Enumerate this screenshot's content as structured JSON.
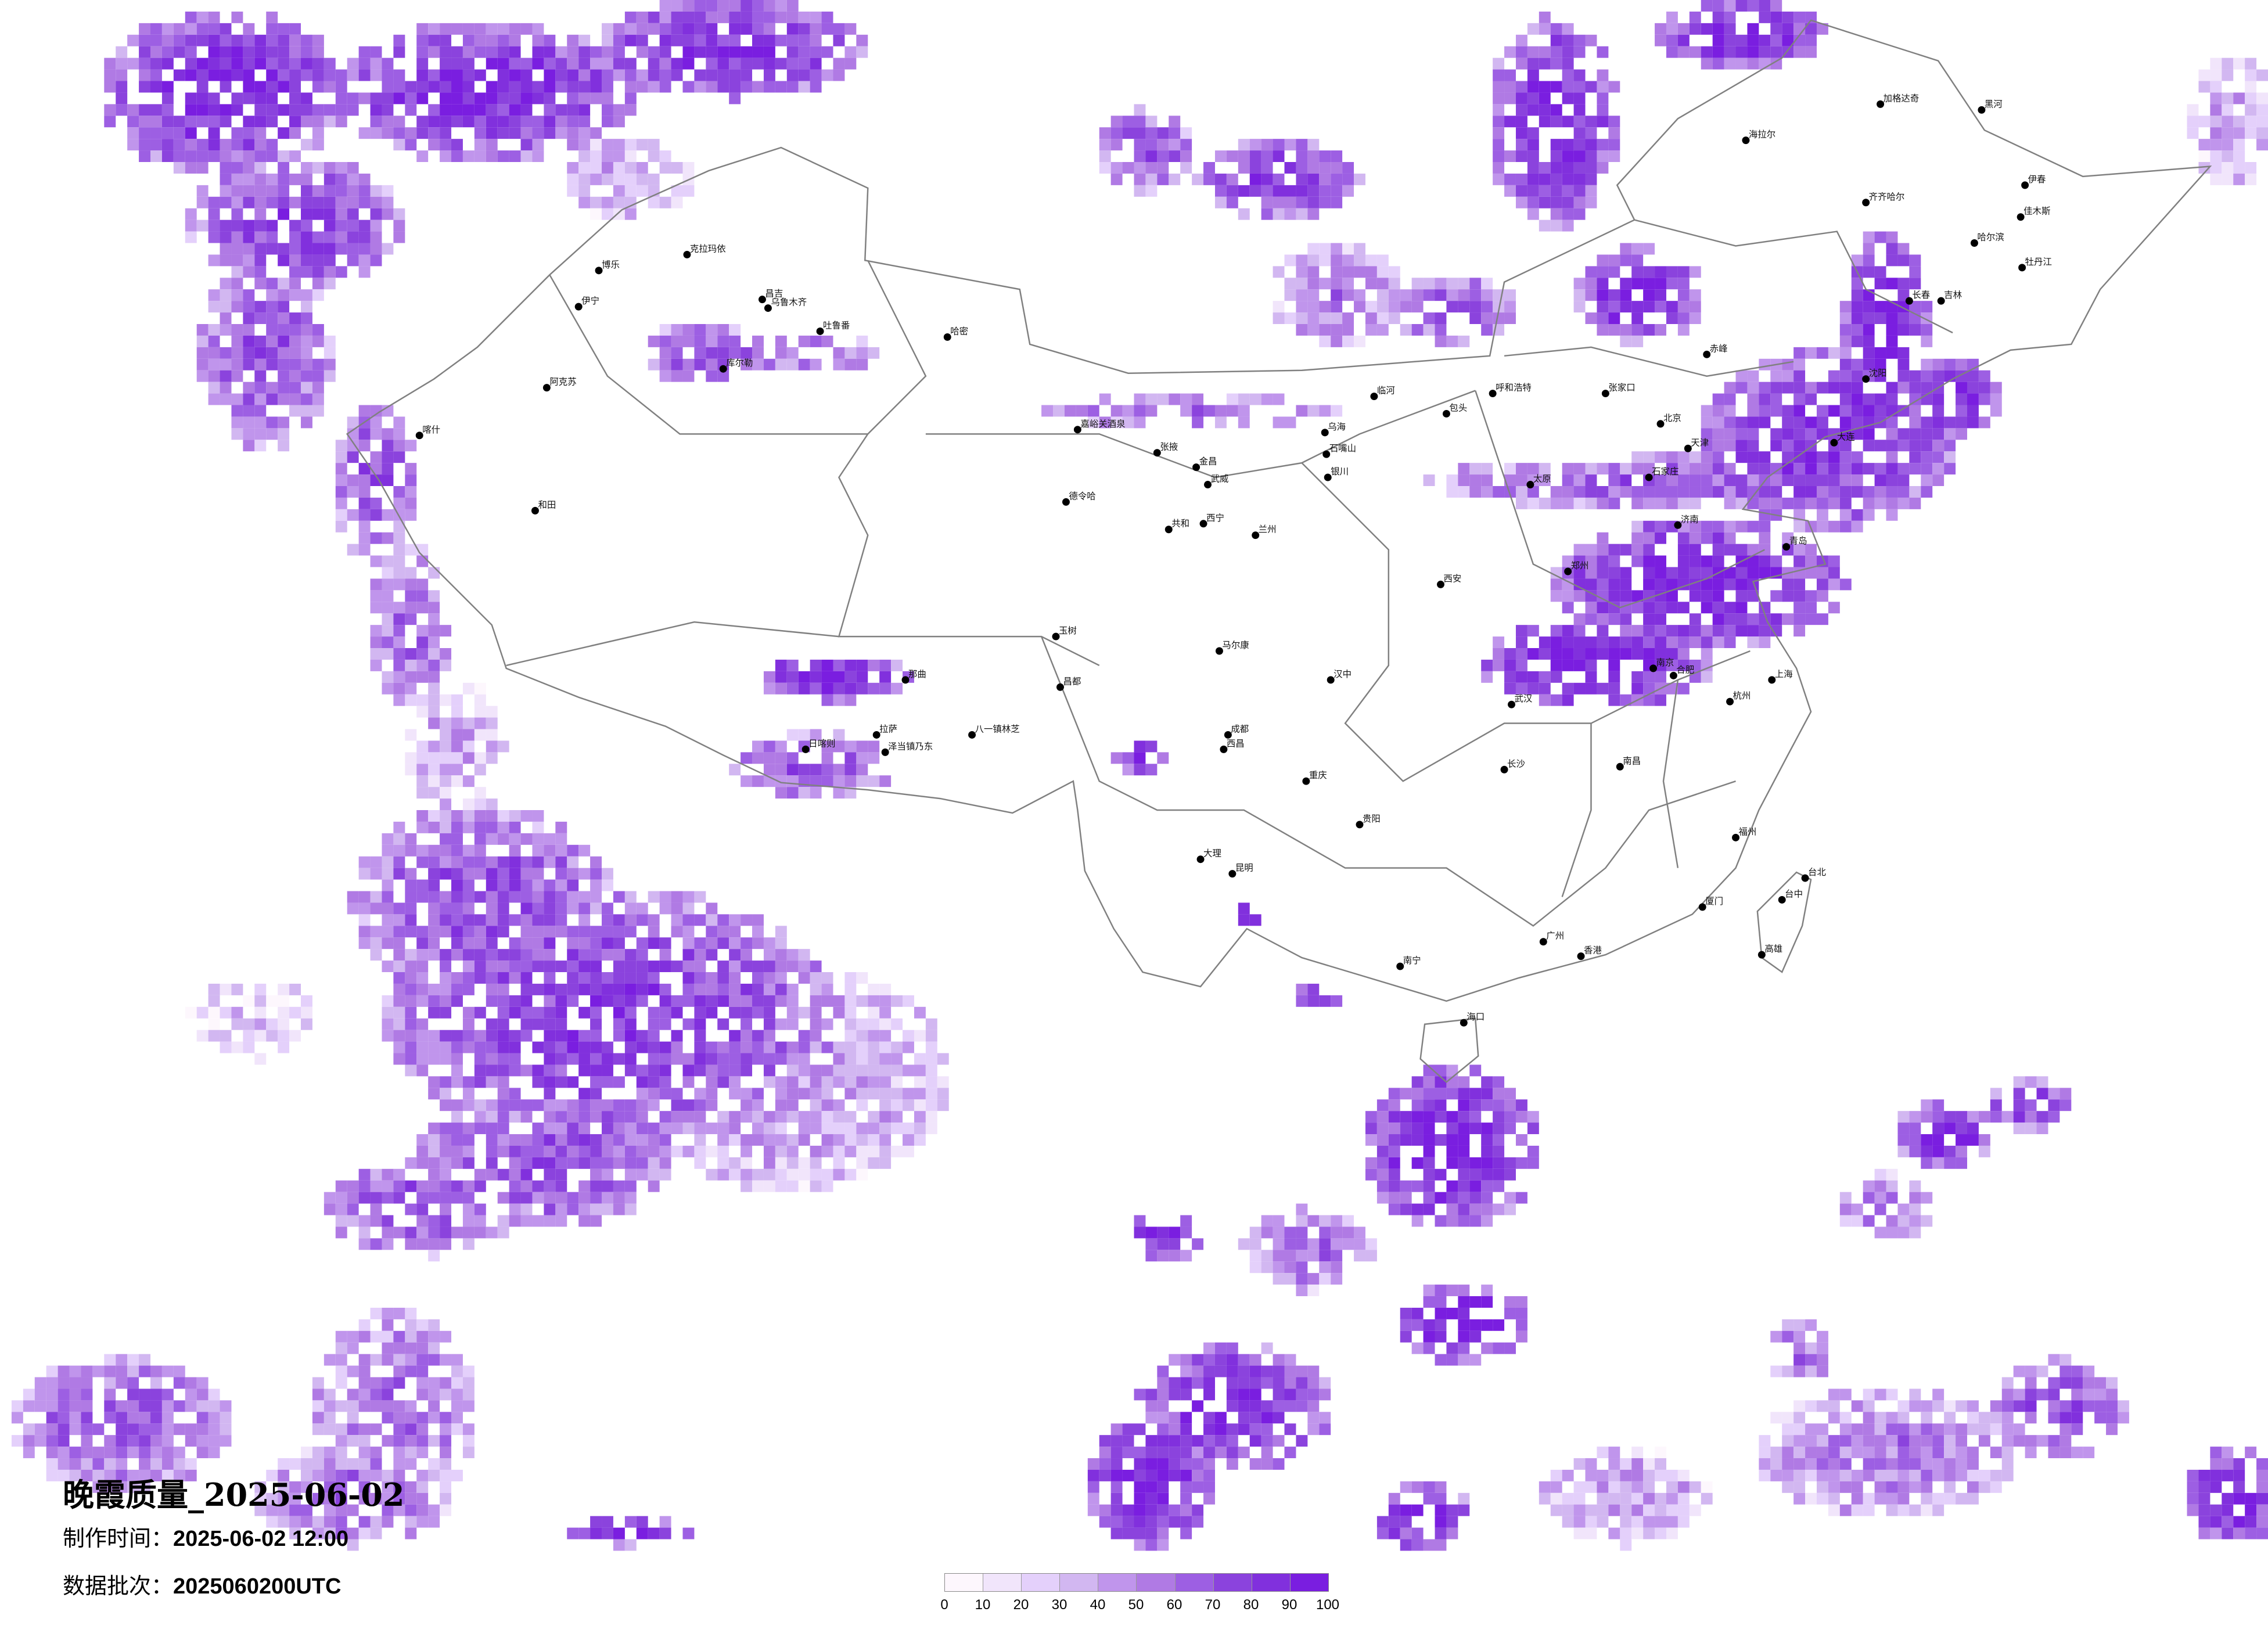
{
  "title": "晚霞质量_2025-06-02",
  "production_time": {
    "label": "制作时间：",
    "value": "2025-06-02 12:00"
  },
  "data_batch": {
    "label": "数据批次：",
    "value": "2025060200UTC"
  },
  "legend": {
    "ticks": [
      "0",
      "10",
      "20",
      "30",
      "40",
      "50",
      "60",
      "70",
      "80",
      "90",
      "100"
    ],
    "colors": [
      "#fdf7fd",
      "#f1e5fb",
      "#e4d0fb",
      "#d2b7f1",
      "#c095ec",
      "#b07ae4",
      "#9d5fe3",
      "#8b43dd",
      "#8130dd",
      "#7a1ee0"
    ]
  },
  "map": {
    "border_color": "#808080",
    "city_dot_color": "#000000",
    "cities": [
      "博乐",
      "克拉玛依",
      "伊宁",
      "昌吉",
      "乌鲁木齐",
      "吐鲁番",
      "哈密",
      "库尔勒",
      "阿克苏",
      "喀什",
      "和田",
      "日喀则",
      "拉萨",
      "泽当镇乃东",
      "八一镇林芝",
      "那曲",
      "昌都",
      "玉树",
      "德令哈",
      "嘉峪关酒泉",
      "张掖",
      "金昌",
      "武威",
      "西宁",
      "共和",
      "兰州",
      "银川",
      "石嘴山",
      "乌海",
      "临河",
      "包头",
      "呼和浩特",
      "张家口",
      "北京",
      "天津",
      "石家庄",
      "太原",
      "济南",
      "青岛",
      "郑州",
      "西安",
      "武汉",
      "长沙",
      "南京",
      "上海",
      "杭州",
      "福州",
      "厦门",
      "广州",
      "香港",
      "南宁",
      "昆明",
      "贵阳",
      "成都",
      "重庆",
      "哈尔滨",
      "长春",
      "沈阳",
      "大连",
      "齐齐哈尔",
      "海拉尔",
      "黑河",
      "加格达奇",
      "台北",
      "台中",
      "高雄",
      "海口",
      "马尔康",
      "西昌",
      "大理",
      "南昌",
      "合肥",
      "汉中",
      "赤峰",
      "吉林",
      "牡丹江",
      "佳木斯",
      "伊春"
    ]
  }
}
